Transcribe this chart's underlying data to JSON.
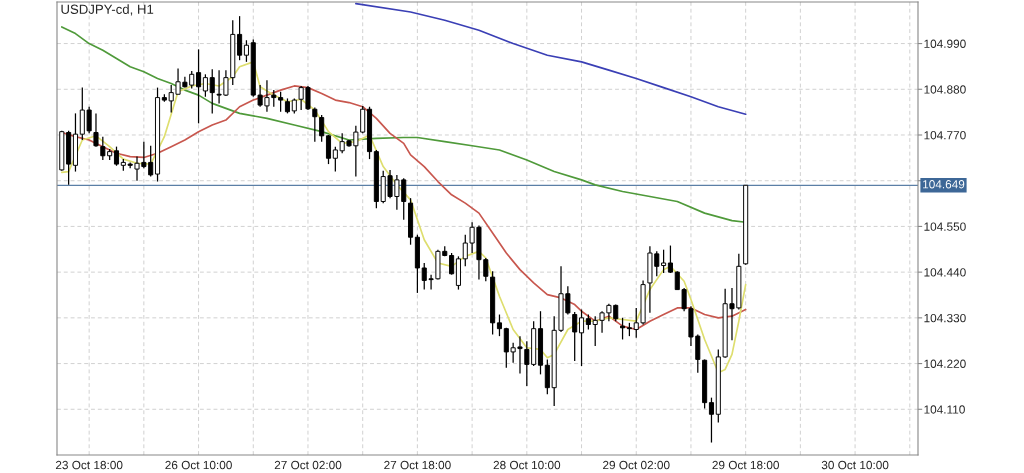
{
  "chart_data": {
    "type": "candlestick",
    "title": "USDJPY-cd, H1",
    "categories": [
      null,
      null,
      null,
      null,
      "23 Oct 18:00",
      null,
      null,
      null,
      null,
      null,
      null,
      null,
      null,
      null,
      null,
      null,
      null,
      null,
      null,
      null,
      "26 Oct 10:00",
      null,
      null,
      null,
      null,
      null,
      null,
      null,
      null,
      null,
      null,
      null,
      null,
      null,
      null,
      null,
      "27 Oct 02:00",
      null,
      null,
      null,
      null,
      null,
      null,
      null,
      null,
      null,
      null,
      null,
      null,
      null,
      null,
      null,
      "27 Oct 18:00",
      null,
      null,
      null,
      null,
      null,
      null,
      null,
      null,
      null,
      null,
      null,
      null,
      null,
      null,
      null,
      "28 Oct 10:00",
      null,
      null,
      null,
      null,
      null,
      null,
      null,
      null,
      null,
      null,
      null,
      null,
      null,
      null,
      null,
      "29 Oct 02:00",
      null,
      null,
      null,
      null,
      null,
      null,
      null,
      null,
      null,
      null,
      null,
      null,
      null,
      null,
      null,
      "29 Oct 18:00",
      null,
      null,
      null,
      null,
      null,
      null,
      null,
      null,
      null,
      null,
      null,
      null,
      null,
      null,
      null,
      "30 Oct 10:00",
      null,
      null,
      null,
      null,
      null,
      null,
      null,
      null,
      null
    ],
    "ohlc": [
      [
        104.686,
        104.78,
        104.684,
        104.778
      ],
      [
        104.776,
        104.78,
        104.65,
        104.7
      ],
      [
        104.697,
        104.822,
        104.682,
        104.772
      ],
      [
        104.772,
        104.884,
        104.758,
        104.83
      ],
      [
        104.83,
        104.838,
        104.774,
        104.78
      ],
      [
        104.776,
        104.822,
        104.742,
        104.744
      ],
      [
        104.742,
        104.766,
        104.71,
        104.72
      ],
      [
        104.72,
        104.736,
        104.71,
        104.73
      ],
      [
        104.732,
        104.742,
        104.696,
        104.7
      ],
      [
        104.697,
        104.712,
        104.684,
        104.704
      ],
      [
        104.7,
        104.704,
        104.69,
        104.697
      ],
      [
        104.688,
        104.718,
        104.66,
        104.702
      ],
      [
        104.704,
        104.754,
        104.69,
        104.694
      ],
      [
        104.704,
        104.744,
        104.67,
        104.674
      ],
      [
        104.676,
        104.884,
        104.658,
        104.86
      ],
      [
        104.86,
        104.868,
        104.85,
        104.854
      ],
      [
        104.852,
        104.89,
        104.824,
        104.872
      ],
      [
        104.868,
        104.93,
        104.868,
        104.898
      ],
      [
        104.897,
        104.91,
        104.884,
        104.886
      ],
      [
        104.89,
        104.924,
        104.882,
        104.916
      ],
      [
        104.92,
        104.976,
        104.798,
        104.886
      ],
      [
        104.876,
        104.916,
        104.862,
        104.908
      ],
      [
        104.908,
        104.928,
        104.822,
        104.872
      ],
      [
        104.868,
        104.926,
        104.846,
        104.866
      ],
      [
        104.866,
        104.926,
        104.864,
        104.908
      ],
      [
        104.908,
        105.046,
        104.89,
        105.012
      ],
      [
        105.012,
        105.056,
        104.95,
        104.962
      ],
      [
        104.962,
        104.998,
        104.946,
        104.986
      ],
      [
        104.992,
        105.0,
        104.862,
        104.866
      ],
      [
        104.866,
        104.89,
        104.838,
        104.842
      ],
      [
        104.84,
        104.902,
        104.826,
        104.86
      ],
      [
        104.866,
        104.878,
        104.838,
        104.86
      ],
      [
        104.86,
        104.874,
        104.826,
        104.854
      ],
      [
        104.85,
        104.858,
        104.822,
        104.826
      ],
      [
        104.828,
        104.858,
        104.822,
        104.854
      ],
      [
        104.856,
        104.888,
        104.83,
        104.884
      ],
      [
        104.884,
        104.888,
        104.83,
        104.833
      ],
      [
        104.832,
        104.836,
        104.754,
        104.814
      ],
      [
        104.812,
        104.818,
        104.754,
        104.768
      ],
      [
        104.768,
        104.77,
        104.7,
        104.714
      ],
      [
        104.714,
        104.742,
        104.682,
        104.734
      ],
      [
        104.732,
        104.774,
        104.726,
        104.754
      ],
      [
        104.756,
        104.758,
        104.742,
        104.744
      ],
      [
        104.744,
        104.792,
        104.67,
        104.777
      ],
      [
        104.777,
        104.84,
        104.774,
        104.832
      ],
      [
        104.832,
        104.838,
        104.712,
        104.73
      ],
      [
        104.73,
        104.734,
        104.594,
        104.61
      ],
      [
        104.61,
        104.684,
        104.606,
        104.67
      ],
      [
        104.672,
        104.686,
        104.618,
        104.622
      ],
      [
        104.622,
        104.674,
        104.59,
        104.662
      ],
      [
        104.662,
        104.666,
        104.566,
        104.61
      ],
      [
        104.606,
        104.618,
        104.506,
        104.524
      ],
      [
        104.524,
        104.53,
        104.39,
        104.45
      ],
      [
        104.45,
        104.462,
        104.398,
        104.42
      ],
      [
        104.424,
        104.434,
        104.398,
        104.422
      ],
      [
        104.424,
        104.494,
        104.422,
        104.49
      ],
      [
        104.49,
        104.502,
        104.478,
        104.48
      ],
      [
        104.48,
        104.486,
        104.434,
        104.436
      ],
      [
        104.408,
        104.478,
        104.398,
        104.472
      ],
      [
        104.472,
        104.53,
        104.454,
        104.51
      ],
      [
        104.51,
        104.56,
        104.486,
        104.548
      ],
      [
        104.548,
        104.552,
        104.422,
        104.47
      ],
      [
        104.47,
        104.474,
        104.418,
        104.43
      ],
      [
        104.428,
        104.442,
        104.29,
        104.318
      ],
      [
        104.318,
        104.338,
        104.286,
        104.304
      ],
      [
        104.304,
        104.306,
        104.21,
        104.248
      ],
      [
        104.248,
        104.27,
        104.222,
        104.258
      ],
      [
        104.26,
        104.286,
        104.196,
        104.256
      ],
      [
        104.254,
        104.274,
        104.166,
        104.218
      ],
      [
        104.218,
        104.322,
        104.214,
        104.304
      ],
      [
        104.304,
        104.346,
        104.194,
        104.216
      ],
      [
        104.216,
        104.23,
        104.146,
        104.162
      ],
      [
        104.162,
        104.334,
        104.118,
        104.3
      ],
      [
        104.3,
        104.454,
        104.296,
        104.388
      ],
      [
        104.388,
        104.406,
        104.338,
        104.342
      ],
      [
        104.338,
        104.344,
        104.226,
        104.296
      ],
      [
        104.294,
        104.35,
        104.214,
        104.33
      ],
      [
        104.328,
        104.338,
        104.302,
        104.314
      ],
      [
        104.314,
        104.334,
        104.262,
        104.324
      ],
      [
        104.324,
        104.346,
        104.294,
        104.342
      ],
      [
        104.342,
        104.364,
        104.322,
        104.36
      ],
      [
        104.36,
        104.362,
        104.322,
        104.328
      ],
      [
        104.31,
        104.33,
        104.278,
        104.306
      ],
      [
        104.306,
        104.318,
        104.286,
        104.304
      ],
      [
        104.302,
        104.354,
        104.282,
        104.318
      ],
      [
        104.318,
        104.42,
        104.314,
        104.41
      ],
      [
        104.414,
        104.502,
        104.342,
        104.486
      ],
      [
        104.484,
        104.49,
        104.43,
        104.454
      ],
      [
        104.456,
        104.494,
        104.438,
        104.462
      ],
      [
        104.462,
        104.504,
        104.438,
        104.44
      ],
      [
        104.44,
        104.442,
        104.398,
        104.398
      ],
      [
        104.398,
        104.402,
        104.346,
        104.352
      ],
      [
        104.352,
        104.358,
        104.262,
        104.284
      ],
      [
        104.286,
        104.29,
        104.198,
        104.23
      ],
      [
        104.228,
        104.23,
        104.112,
        104.126
      ],
      [
        104.126,
        104.138,
        104.03,
        104.098
      ],
      [
        104.098,
        104.254,
        104.078,
        104.236
      ],
      [
        104.236,
        104.4,
        104.234,
        104.364
      ],
      [
        104.364,
        104.402,
        104.276,
        104.352
      ],
      [
        104.354,
        104.484,
        104.35,
        104.454
      ],
      [
        104.46,
        104.649,
        104.458,
        104.649
      ],
      null,
      null,
      null,
      null,
      null,
      null,
      null,
      null,
      null,
      null,
      null,
      null,
      null,
      null,
      null,
      null,
      null,
      null,
      null,
      null,
      null,
      null,
      null,
      null,
      null
    ],
    "series": [
      {
        "type": "line",
        "color": "#3a3fb5",
        "values": [
          null,
          null,
          null,
          null,
          null,
          null,
          null,
          null,
          null,
          null,
          null,
          null,
          null,
          null,
          null,
          null,
          null,
          null,
          null,
          null,
          null,
          null,
          null,
          null,
          null,
          null,
          null,
          null,
          null,
          null,
          null,
          null,
          null,
          null,
          null,
          null,
          null,
          null,
          null,
          null,
          null,
          null,
          null,
          105.086,
          null,
          null,
          null,
          null,
          null,
          null,
          null,
          105.066,
          null,
          null,
          null,
          null,
          105.046,
          null,
          null,
          null,
          null,
          105.022,
          null,
          null,
          null,
          null,
          104.99,
          null,
          null,
          null,
          null,
          104.962,
          null,
          null,
          null,
          null,
          104.946,
          null,
          null,
          null,
          104.926,
          null,
          null,
          null,
          104.906,
          null,
          null,
          null,
          104.884,
          null,
          null,
          null,
          104.862,
          null,
          null,
          null,
          104.838,
          null,
          null,
          null,
          104.82,
          null,
          null,
          null,
          null,
          null,
          null,
          null,
          null,
          null,
          null,
          null,
          null,
          null,
          null,
          null,
          null,
          null,
          null,
          null,
          null,
          null,
          null,
          null,
          null,
          null
        ]
      },
      {
        "type": "line",
        "color": "#4f9a3a",
        "values": [
          105.03,
          null,
          105.014,
          null,
          104.99,
          null,
          104.974,
          null,
          104.954,
          null,
          104.934,
          null,
          104.922,
          null,
          104.906,
          null,
          104.894,
          null,
          104.878,
          null,
          104.866,
          null,
          104.846,
          null,
          104.834,
          null,
          104.822,
          null,
          null,
          null,
          104.81,
          null,
          null,
          null,
          104.794,
          null,
          null,
          null,
          104.778,
          null,
          null,
          null,
          104.758,
          null,
          null,
          null,
          104.762,
          null,
          null,
          null,
          104.764,
          null,
          104.764,
          null,
          null,
          null,
          104.754,
          null,
          null,
          null,
          104.744,
          null,
          null,
          null,
          104.734,
          null,
          null,
          null,
          104.71,
          null,
          null,
          null,
          104.682,
          null,
          null,
          null,
          104.662,
          null,
          104.65,
          null,
          null,
          null,
          104.634,
          null,
          null,
          null,
          104.622,
          null,
          null,
          null,
          104.61,
          null,
          null,
          null,
          104.582,
          null,
          null,
          null,
          104.564,
          null,
          104.56,
          null,
          null,
          null,
          null,
          null,
          null,
          null,
          null,
          null,
          null,
          null,
          null,
          null,
          null,
          null,
          null,
          null,
          null,
          null,
          null,
          null,
          null,
          null,
          null,
          null
        ]
      },
      {
        "type": "line",
        "color": "#c8574e",
        "values": [
          104.776,
          null,
          104.766,
          null,
          104.758,
          null,
          104.742,
          null,
          104.726,
          null,
          104.718,
          null,
          104.716,
          null,
          104.726,
          null,
          104.742,
          null,
          104.758,
          null,
          104.778,
          null,
          104.794,
          null,
          104.806,
          null,
          104.838,
          null,
          104.854,
          null,
          104.866,
          null,
          104.878,
          null,
          104.888,
          null,
          104.884,
          null,
          104.87,
          null,
          104.854,
          null,
          104.848,
          null,
          104.838,
          null,
          104.81,
          null,
          104.774,
          null,
          104.75,
          104.722,
          null,
          104.694,
          null,
          104.658,
          null,
          104.626,
          null,
          104.606,
          null,
          104.582,
          null,
          104.534,
          null,
          104.486,
          null,
          104.446,
          null,
          104.414,
          null,
          104.386,
          null,
          104.378,
          null,
          104.362,
          104.346,
          null,
          104.322,
          null,
          104.334,
          null,
          104.31,
          null,
          104.302,
          null,
          104.322,
          null,
          104.338,
          null,
          104.354,
          null,
          104.354,
          null,
          104.338,
          null,
          104.33,
          null,
          104.334,
          null,
          104.35,
          null,
          null,
          null,
          null,
          null,
          null,
          null,
          null,
          null,
          null,
          null,
          null,
          null,
          null,
          null,
          null,
          null,
          null,
          null,
          null,
          null,
          null,
          null,
          null,
          null
        ]
      },
      {
        "type": "line",
        "color": "#dede6e",
        "values": [
          104.68,
          104.682,
          null,
          104.758,
          null,
          104.768,
          null,
          104.742,
          null,
          104.712,
          null,
          104.702,
          null,
          104.7,
          null,
          104.766,
          null,
          104.874,
          null,
          104.888,
          null,
          104.894,
          null,
          104.888,
          null,
          104.91,
          104.934,
          null,
          104.946,
          104.886,
          null,
          104.866,
          null,
          104.85,
          null,
          104.856,
          null,
          104.83,
          null,
          104.778,
          null,
          104.75,
          null,
          104.754,
          null,
          104.77,
          null,
          104.694,
          null,
          104.65,
          null,
          104.614,
          null,
          104.518,
          null,
          104.462,
          null,
          104.454,
          null,
          104.478,
          null,
          104.49,
          104.474,
          null,
          104.382,
          null,
          104.302,
          null,
          104.258,
          null,
          104.254,
          104.234,
          104.242,
          null,
          104.302,
          null,
          104.322,
          null,
          104.322,
          null,
          104.33,
          null,
          104.326,
          null,
          104.322,
          null,
          104.398,
          null,
          104.446,
          104.454,
          null,
          104.418,
          104.374,
          null,
          104.278,
          null,
          104.198,
          104.206,
          104.242,
          104.322,
          104.41,
          null,
          null,
          null,
          null,
          null,
          null,
          null,
          null,
          null,
          null,
          null,
          null,
          null,
          null,
          null,
          null,
          null,
          null,
          null,
          null,
          null,
          null,
          null,
          null,
          null
        ]
      }
    ],
    "ref_lines": [
      {
        "axis": "y",
        "value": 104.649,
        "label": "104.649",
        "color": "#5b7fa6"
      }
    ],
    "ylim": [
      104.0,
      105.09
    ],
    "yticks": [
      {
        "value": 104.11,
        "label": "104.110"
      },
      {
        "value": 104.22,
        "label": "104.220"
      },
      {
        "value": 104.33,
        "label": "104.330"
      },
      {
        "value": 104.44,
        "label": "104.440"
      },
      {
        "value": 104.55,
        "label": "104.550"
      },
      {
        "value": 104.66,
        "label": null
      },
      {
        "value": 104.77,
        "label": "104.770"
      },
      {
        "value": 104.88,
        "label": "104.880"
      },
      {
        "value": 104.99,
        "label": "104.990"
      }
    ],
    "grid": true
  }
}
